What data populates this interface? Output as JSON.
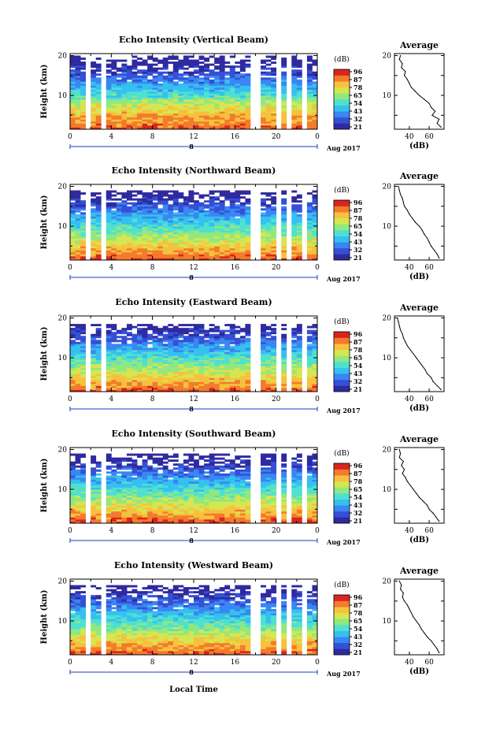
{
  "colors": {
    "scale": [
      "#2f2aa0",
      "#3550d6",
      "#3a86f2",
      "#35c0f0",
      "#4fe0d0",
      "#90e880",
      "#d6e650",
      "#f6c23e",
      "#f47a2c",
      "#d8261e"
    ],
    "line": "#000000",
    "axis_marker": "#1a3cc0"
  },
  "shared": {
    "x_label": "Local Time",
    "date_label": "Aug 2017",
    "date_marker": "8",
    "colorbar_unit": "(dB)",
    "colorbar_ticks": [
      "96",
      "87",
      "78",
      "65",
      "54",
      "43",
      "32",
      "21"
    ],
    "profile_title": "Average",
    "profile_xlabel": "(dB)",
    "y_label": "Height (km)"
  },
  "chart_data": [
    {
      "type": "heatmap",
      "title": "Echo Intensity (Vertical Beam)",
      "xlabel": "Local Time",
      "ylabel": "Height (km)",
      "x_ticks": [
        "0",
        "4",
        "8",
        "12",
        "16",
        "20",
        "0"
      ],
      "y_ticks": [
        "10",
        "20"
      ],
      "xlim": [
        0,
        24
      ],
      "ylim": [
        1.5,
        20.5
      ],
      "gaps_hours": [
        [
          1.6,
          2.2
        ],
        [
          3.0,
          3.4
        ],
        [
          6.3,
          6.6
        ],
        [
          17.7,
          18.3
        ],
        [
          19.9,
          20.3
        ],
        [
          21.1,
          21.6
        ],
        [
          22.6,
          22.9
        ]
      ],
      "top_km": 19.6,
      "units": "dB",
      "profile": {
        "title": "Average",
        "xlabel": "(dB)",
        "x_ticks": [
          "40",
          "60"
        ],
        "xlim": [
          25,
          75
        ],
        "heights_km": [
          2,
          3,
          4,
          5,
          6,
          7,
          8,
          9,
          10,
          11,
          12,
          13,
          14,
          15,
          16,
          17,
          18,
          19,
          20
        ],
        "values_db": [
          72,
          68,
          70,
          63,
          66,
          62,
          60,
          55,
          50,
          46,
          42,
          40,
          38,
          35,
          36,
          32,
          33,
          30,
          31
        ]
      }
    },
    {
      "type": "heatmap",
      "title": "Echo Intensity (Northward Beam)",
      "xlabel": "Local Time",
      "ylabel": "Height (km)",
      "x_ticks": [
        "0",
        "4",
        "8",
        "12",
        "16",
        "20",
        "0"
      ],
      "y_ticks": [
        "10",
        "20"
      ],
      "xlim": [
        0,
        24
      ],
      "ylim": [
        1.5,
        20.5
      ],
      "gaps_hours": [
        [
          1.6,
          2.2
        ],
        [
          3.0,
          3.4
        ],
        [
          6.3,
          6.6
        ],
        [
          17.7,
          18.3
        ],
        [
          19.9,
          20.3
        ],
        [
          21.1,
          21.6
        ],
        [
          22.6,
          22.9
        ]
      ],
      "top_km": 18.6,
      "units": "dB",
      "profile": {
        "title": "Average",
        "xlabel": "(dB)",
        "x_ticks": [
          "40",
          "60"
        ],
        "xlim": [
          25,
          75
        ],
        "heights_km": [
          2,
          3,
          4,
          5,
          6,
          7,
          8,
          9,
          10,
          11,
          12,
          13,
          14,
          15,
          16,
          17,
          18,
          19,
          20
        ],
        "values_db": [
          70,
          68,
          65,
          62,
          60,
          58,
          55,
          53,
          50,
          46,
          43,
          40,
          38,
          35,
          34,
          33,
          31,
          30,
          29
        ]
      }
    },
    {
      "type": "heatmap",
      "title": "Echo Intensity (Eastward Beam)",
      "xlabel": "Local Time",
      "ylabel": "Height (km)",
      "x_ticks": [
        "0",
        "4",
        "8",
        "12",
        "16",
        "20",
        "0"
      ],
      "y_ticks": [
        "10",
        "20"
      ],
      "xlim": [
        0,
        24
      ],
      "ylim": [
        1.5,
        20.5
      ],
      "gaps_hours": [
        [
          1.6,
          2.2
        ],
        [
          3.0,
          3.4
        ],
        [
          6.3,
          6.6
        ],
        [
          17.7,
          18.3
        ],
        [
          19.9,
          20.3
        ],
        [
          21.1,
          21.6
        ],
        [
          22.6,
          22.9
        ]
      ],
      "top_km": 18.2,
      "units": "dB",
      "profile": {
        "title": "Average",
        "xlabel": "(dB)",
        "x_ticks": [
          "40",
          "60"
        ],
        "xlim": [
          25,
          75
        ],
        "heights_km": [
          2,
          3,
          4,
          5,
          6,
          7,
          8,
          9,
          10,
          11,
          12,
          13,
          14,
          15,
          16,
          17,
          18,
          19,
          20
        ],
        "values_db": [
          72,
          68,
          64,
          62,
          58,
          56,
          53,
          50,
          47,
          44,
          41,
          38,
          36,
          34,
          33,
          31,
          30,
          29,
          28
        ]
      }
    },
    {
      "type": "heatmap",
      "title": "Echo Intensity (Southward Beam)",
      "xlabel": "Local Time",
      "ylabel": "Height (km)",
      "x_ticks": [
        "0",
        "4",
        "8",
        "12",
        "16",
        "20",
        "0"
      ],
      "y_ticks": [
        "10",
        "20"
      ],
      "xlim": [
        0,
        24
      ],
      "ylim": [
        1.5,
        20.5
      ],
      "gaps_hours": [
        [
          1.6,
          2.2
        ],
        [
          3.0,
          3.4
        ],
        [
          6.3,
          6.6
        ],
        [
          17.7,
          18.3
        ],
        [
          19.9,
          20.3
        ],
        [
          21.1,
          21.6
        ],
        [
          22.6,
          22.9
        ]
      ],
      "top_km": 18.6,
      "units": "dB",
      "profile": {
        "title": "Average",
        "xlabel": "(dB)",
        "x_ticks": [
          "40",
          "60"
        ],
        "xlim": [
          25,
          75
        ],
        "heights_km": [
          2,
          3,
          4,
          5,
          6,
          7,
          8,
          9,
          10,
          11,
          12,
          13,
          14,
          15,
          16,
          17,
          18,
          19,
          20
        ],
        "values_db": [
          70,
          67,
          64,
          60,
          58,
          54,
          50,
          47,
          44,
          41,
          38,
          36,
          33,
          35,
          32,
          34,
          30,
          31,
          30
        ]
      }
    },
    {
      "type": "heatmap",
      "title": "Echo Intensity (Westward Beam)",
      "xlabel": "Local Time",
      "ylabel": "Height (km)",
      "x_ticks": [
        "0",
        "4",
        "8",
        "12",
        "16",
        "20",
        "0"
      ],
      "y_ticks": [
        "10",
        "20"
      ],
      "xlim": [
        0,
        24
      ],
      "ylim": [
        1.5,
        20.5
      ],
      "gaps_hours": [
        [
          1.6,
          2.2
        ],
        [
          3.0,
          3.4
        ],
        [
          6.3,
          6.6
        ],
        [
          17.7,
          18.3
        ],
        [
          19.9,
          20.3
        ],
        [
          21.1,
          21.6
        ],
        [
          22.6,
          22.9
        ]
      ],
      "top_km": 18.8,
      "units": "dB",
      "profile": {
        "title": "Average",
        "xlabel": "(dB)",
        "x_ticks": [
          "40",
          "60"
        ],
        "xlim": [
          25,
          75
        ],
        "heights_km": [
          2,
          3,
          4,
          5,
          6,
          7,
          8,
          9,
          10,
          11,
          12,
          13,
          14,
          15,
          16,
          17,
          18,
          19,
          20
        ],
        "values_db": [
          70,
          68,
          65,
          62,
          58,
          55,
          52,
          50,
          47,
          44,
          42,
          40,
          38,
          35,
          33,
          34,
          31,
          32,
          30
        ]
      }
    }
  ]
}
